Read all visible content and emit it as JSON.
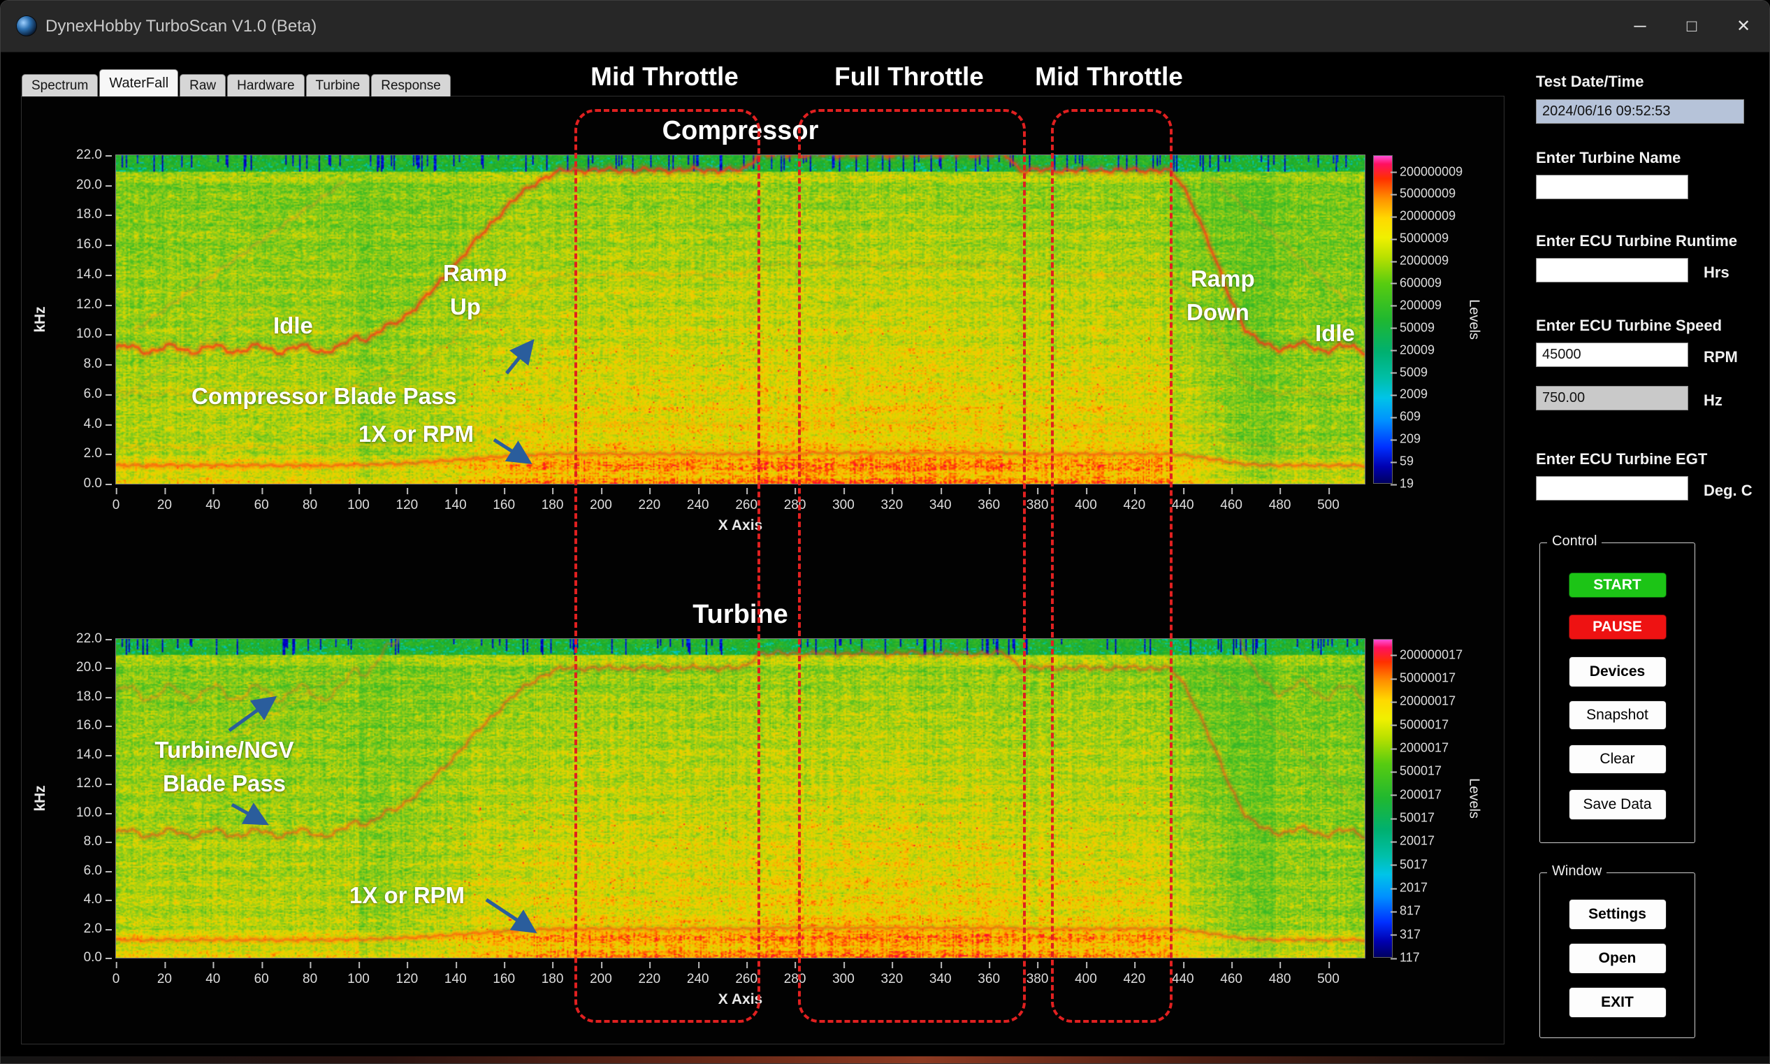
{
  "window": {
    "title": "DynexHobby TurboScan V1.0 (Beta)",
    "controls": {
      "minimize": "─",
      "maximize": "□",
      "close": "✕"
    }
  },
  "tabs": [
    {
      "label": "Spectrum",
      "active": false
    },
    {
      "label": "WaterFall",
      "active": true
    },
    {
      "label": "Raw",
      "active": false
    },
    {
      "label": "Hardware",
      "active": false
    },
    {
      "label": "Turbine",
      "active": false
    },
    {
      "label": "Response",
      "active": false
    }
  ],
  "throttle_regions": [
    {
      "label": "Mid Throttle",
      "x_range": [
        189,
        263
      ]
    },
    {
      "label": "Full Throttle",
      "x_range": [
        281,
        373
      ]
    },
    {
      "label": "Mid Throttle",
      "x_range": [
        386,
        433
      ]
    }
  ],
  "colors": {
    "region_box": "#e02020",
    "arrow_blue": "#2a5d9c",
    "start_green": "#1cc416",
    "pause_red": "#ee1212"
  },
  "sidebar": {
    "test_datetime_label": "Test Date/Time",
    "test_datetime_value": "2024/06/16 09:52:53",
    "turbine_name_label": "Enter Turbine Name",
    "turbine_name_value": "",
    "runtime_label": "Enter ECU Turbine Runtime",
    "runtime_value": "",
    "runtime_unit": "Hrs",
    "speed_label": "Enter ECU Turbine Speed",
    "speed_value": "45000",
    "speed_unit": "RPM",
    "speed_hz_value": "750.00",
    "speed_hz_unit": "Hz",
    "egt_label": "Enter ECU Turbine EGT",
    "egt_value": "",
    "egt_unit": "Deg. C",
    "control_group": {
      "title": "Control",
      "buttons": [
        {
          "label": "START"
        },
        {
          "label": "PAUSE"
        },
        {
          "label": "Devices"
        },
        {
          "label": "Snapshot"
        },
        {
          "label": "Clear"
        },
        {
          "label": "Save Data"
        }
      ]
    },
    "window_group": {
      "title": "Window",
      "buttons": [
        {
          "label": "Settings"
        },
        {
          "label": "Open"
        },
        {
          "label": "EXIT"
        }
      ]
    }
  },
  "chart_data": [
    {
      "type": "heatmap",
      "title": "Compressor",
      "xlabel": "X Axis",
      "ylabel": "kHz",
      "colorbar_label": "Levels",
      "x_range": [
        0,
        515
      ],
      "y_range": [
        0,
        22
      ],
      "x_ticks": [
        0,
        20,
        40,
        60,
        80,
        100,
        120,
        140,
        160,
        180,
        200,
        220,
        240,
        260,
        280,
        300,
        320,
        340,
        360,
        380,
        400,
        420,
        440,
        460,
        480,
        500
      ],
      "y_ticks": [
        "22.0",
        "20.0",
        "18.0",
        "16.0",
        "14.0",
        "12.0",
        "10.0",
        "8.0",
        "6.0",
        "4.0",
        "2.0",
        "0.0"
      ],
      "colorbar_ticks": [
        "200000009",
        "50000009",
        "20000009",
        "5000009",
        "2000009",
        "600009",
        "200009",
        "50009",
        "20009",
        "5009",
        "2009",
        "609",
        "209",
        "59",
        "19"
      ],
      "annotations": {
        "idle_left": "Idle",
        "ramp_up_1": "Ramp",
        "ramp_up_2": "Up",
        "blade_pass": "Compressor Blade Pass",
        "one_x": "1X or RPM",
        "ramp_down_1": "Ramp",
        "ramp_down_2": "Down",
        "idle_right": "Idle"
      },
      "seed": 101,
      "rpm_profile": [
        [
          0,
          0.43
        ],
        [
          92,
          0.43
        ],
        [
          100,
          0.47
        ],
        [
          188,
          1.0
        ],
        [
          258,
          1.0
        ],
        [
          266,
          1.05
        ],
        [
          366,
          1.05
        ],
        [
          374,
          1.0
        ],
        [
          432,
          1.0
        ],
        [
          474,
          0.44
        ],
        [
          515,
          0.43
        ]
      ],
      "traces": [
        {
          "kind": "rpm_multiple",
          "factor": 21,
          "color": "#ff3818",
          "alpha": 0.75,
          "width": 1.7,
          "wobble": 0.12
        },
        {
          "kind": "rpm_multiple",
          "factor": 14,
          "color": "#ff7020",
          "alpha": 0.16,
          "width": 1.2,
          "wobble": 0.1
        },
        {
          "kind": "one_x",
          "base": 0.65,
          "gain": 1.35,
          "color": "#ff3818",
          "alpha": 0.55,
          "width": 1.5,
          "wobble": 0.06
        },
        {
          "kind": "one_x",
          "base": 1.3,
          "gain": 2.7,
          "color": "#ff7020",
          "alpha": 0.12,
          "width": 1.2,
          "wobble": 0.08
        },
        {
          "kind": "segment",
          "x0": 8,
          "f0": 10.3,
          "x1": 94,
          "f1": 20.2,
          "color": "#ff8030",
          "alpha": 0.28,
          "width": 1.2,
          "wobble": 0.1
        },
        {
          "kind": "segment",
          "x0": 0,
          "f0": 5.5,
          "x1": 60,
          "f1": 12,
          "color": "#ff9040",
          "alpha": 0.15,
          "width": 1.1,
          "wobble": 0.1
        },
        {
          "kind": "segment",
          "x0": 452,
          "f0": 20.5,
          "x1": 507,
          "f1": 12.3,
          "color": "#ff8030",
          "alpha": 0.22,
          "width": 1.2,
          "wobble": 0.1
        }
      ]
    },
    {
      "type": "heatmap",
      "title": "Turbine",
      "xlabel": "X Axis",
      "ylabel": "kHz",
      "colorbar_label": "Levels",
      "x_range": [
        0,
        515
      ],
      "y_range": [
        0,
        22
      ],
      "x_ticks": [
        0,
        20,
        40,
        60,
        80,
        100,
        120,
        140,
        160,
        180,
        200,
        220,
        240,
        260,
        280,
        300,
        320,
        340,
        360,
        380,
        400,
        420,
        440,
        460,
        480,
        500
      ],
      "y_ticks": [
        "22.0",
        "20.0",
        "18.0",
        "16.0",
        "14.0",
        "12.0",
        "10.0",
        "8.0",
        "6.0",
        "4.0",
        "2.0",
        "0.0"
      ],
      "colorbar_ticks": [
        "200000017",
        "50000017",
        "20000017",
        "5000017",
        "2000017",
        "500017",
        "200017",
        "50017",
        "20017",
        "5017",
        "2017",
        "817",
        "317",
        "117"
      ],
      "annotations": {
        "blade_pass_1": "Turbine/NGV",
        "blade_pass_2": "Blade Pass",
        "one_x": "1X or RPM"
      },
      "seed": 202,
      "rpm_profile": [
        [
          0,
          0.43
        ],
        [
          92,
          0.43
        ],
        [
          100,
          0.47
        ],
        [
          188,
          1.0
        ],
        [
          258,
          1.0
        ],
        [
          266,
          1.05
        ],
        [
          366,
          1.05
        ],
        [
          374,
          1.0
        ],
        [
          432,
          1.0
        ],
        [
          474,
          0.44
        ],
        [
          515,
          0.43
        ]
      ],
      "traces": [
        {
          "kind": "rpm_multiple",
          "factor": 20,
          "color": "#ff4418",
          "alpha": 0.5,
          "width": 1.5,
          "wobble": 0.12
        },
        {
          "kind": "rpm_multiple",
          "factor": 42.5,
          "color": "#ff6020",
          "alpha": 0.32,
          "width": 1.3,
          "wobble": 0.15
        },
        {
          "kind": "one_x",
          "base": 0.65,
          "gain": 1.35,
          "color": "#ff3818",
          "alpha": 0.5,
          "width": 1.5,
          "wobble": 0.06
        },
        {
          "kind": "segment",
          "x0": 18,
          "f0": 12,
          "x1": 92,
          "f1": 19.6,
          "color": "#ff8030",
          "alpha": 0.18,
          "width": 1.1,
          "wobble": 0.1
        },
        {
          "kind": "segment",
          "x0": 450,
          "f0": 20.2,
          "x1": 507,
          "f1": 11.4,
          "color": "#ff8030",
          "alpha": 0.18,
          "width": 1.1,
          "wobble": 0.1
        }
      ]
    }
  ]
}
